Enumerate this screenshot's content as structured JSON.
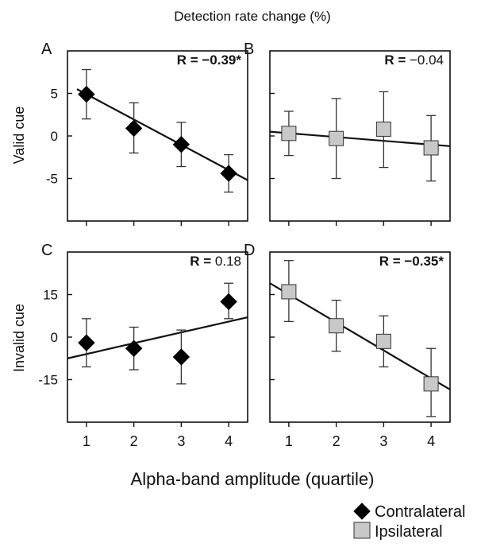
{
  "figure": {
    "top_title": "Detection rate change (%)",
    "x_axis_label": "Alpha-band amplitude (quartile)",
    "row_labels": [
      "Valid cue",
      "Invalid cue"
    ],
    "legend": [
      {
        "label": "Contralateral",
        "marker": "diamond",
        "color": "#000000"
      },
      {
        "label": "Ipsilateral",
        "marker": "square",
        "color": "#c8c8c8"
      }
    ]
  },
  "chart_data": [
    {
      "type": "scatter",
      "panel": "A",
      "row": "Valid cue",
      "series_name": "Contralateral",
      "r_label": "R = ",
      "r_value": "−0.39*",
      "r_bold": true,
      "ylim": [
        -10,
        10
      ],
      "yticks": [
        5,
        0,
        -5
      ],
      "ytick_labels": [
        "5",
        "0",
        "-5"
      ],
      "xticks": [
        1,
        2,
        3,
        4
      ],
      "x": [
        1,
        2,
        3,
        4
      ],
      "y": [
        4.9,
        0.9,
        -1.0,
        -4.4
      ],
      "err_low": [
        2.0,
        -2.0,
        -3.6,
        -6.6
      ],
      "err_high": [
        7.8,
        3.9,
        1.6,
        -2.2
      ],
      "fit": {
        "x": [
          0.8,
          4.4
        ],
        "y": [
          5.5,
          -5.2
        ]
      }
    },
    {
      "type": "scatter",
      "panel": "B",
      "row": "Valid cue",
      "series_name": "Ipsilateral",
      "r_label": "R = ",
      "r_value": "−0.04",
      "r_bold": false,
      "ylim": [
        -10,
        10
      ],
      "yticks": [
        5,
        0,
        -5
      ],
      "ytick_labels": [
        "",
        "",
        ""
      ],
      "xticks": [
        1,
        2,
        3,
        4
      ],
      "x": [
        1,
        2,
        3,
        4
      ],
      "y": [
        0.3,
        -0.3,
        0.8,
        -1.4
      ],
      "err_low": [
        -2.3,
        -5.0,
        -3.7,
        -5.3
      ],
      "err_high": [
        2.9,
        4.4,
        5.2,
        2.4
      ],
      "fit": {
        "x": [
          0.6,
          4.4
        ],
        "y": [
          0.5,
          -1.2
        ]
      }
    },
    {
      "type": "scatter",
      "panel": "C",
      "row": "Invalid cue",
      "series_name": "Contralateral",
      "r_label": "R = ",
      "r_value": "0.18",
      "r_bold": false,
      "ylim": [
        -30,
        30
      ],
      "yticks": [
        15,
        0,
        -15
      ],
      "ytick_labels": [
        "15",
        "0",
        "-15"
      ],
      "xticks": [
        1,
        2,
        3,
        4
      ],
      "x": [
        1,
        2,
        3,
        4
      ],
      "y": [
        -2.0,
        -4.0,
        -7.0,
        12.5
      ],
      "err_low": [
        -10.5,
        -11.5,
        -16.5,
        6.5
      ],
      "err_high": [
        6.5,
        3.5,
        2.5,
        19.0
      ],
      "fit": {
        "x": [
          0.6,
          4.4
        ],
        "y": [
          -7.5,
          7.0
        ]
      }
    },
    {
      "type": "scatter",
      "panel": "D",
      "row": "Invalid cue",
      "series_name": "Ipsilateral",
      "r_label": "R = ",
      "r_value": "−0.35*",
      "r_bold": true,
      "ylim": [
        -30,
        30
      ],
      "yticks": [
        15,
        0,
        -15
      ],
      "ytick_labels": [
        "",
        "",
        ""
      ],
      "xticks": [
        1,
        2,
        3,
        4
      ],
      "x": [
        1,
        2,
        3,
        4
      ],
      "y": [
        16.0,
        4.0,
        -1.5,
        -16.5
      ],
      "err_low": [
        5.5,
        -5.0,
        -10.5,
        -28.0
      ],
      "err_high": [
        27.0,
        13.0,
        7.5,
        -4.0
      ],
      "fit": {
        "x": [
          0.6,
          4.4
        ],
        "y": [
          19.0,
          -18.5
        ]
      }
    }
  ]
}
